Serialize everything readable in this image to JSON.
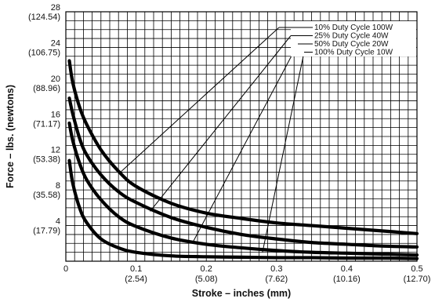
{
  "chart_data": {
    "type": "line",
    "title": "",
    "xlabel": "Stroke – inches (mm)",
    "ylabel": "Force – lbs. (newtons)",
    "xlim": [
      0,
      0.5
    ],
    "ylim": [
      0,
      28
    ],
    "grid": true,
    "legend_position": "top-right",
    "x_ticks": [
      {
        "value": 0,
        "label": "0",
        "sub": ""
      },
      {
        "value": 0.1,
        "label": "0.1",
        "sub": "(2.54)"
      },
      {
        "value": 0.2,
        "label": "0.2",
        "sub": "(5.08)"
      },
      {
        "value": 0.3,
        "label": "0.3",
        "sub": "(7.62)"
      },
      {
        "value": 0.4,
        "label": "0.4",
        "sub": "(10.16)"
      },
      {
        "value": 0.5,
        "label": "0.5",
        "sub": "(12.70)"
      }
    ],
    "y_ticks": [
      {
        "value": 4,
        "label": "4",
        "sub": "(17.79)"
      },
      {
        "value": 8,
        "label": "8",
        "sub": "(35.58)"
      },
      {
        "value": 12,
        "label": "12",
        "sub": "(53.38)"
      },
      {
        "value": 16,
        "label": "16",
        "sub": "(71.17)"
      },
      {
        "value": 20,
        "label": "20",
        "sub": "(88.96)"
      },
      {
        "value": 24,
        "label": "24",
        "sub": "(106.75)"
      },
      {
        "value": 28,
        "label": "28",
        "sub": "(124.54)"
      }
    ],
    "series": [
      {
        "name": "10% Duty Cycle 100W",
        "x": [
          0.005,
          0.01,
          0.02,
          0.03,
          0.05,
          0.075,
          0.1,
          0.15,
          0.2,
          0.25,
          0.3,
          0.35,
          0.4,
          0.45,
          0.5
        ],
        "y": [
          22.5,
          20.0,
          17.2,
          15.3,
          12.5,
          10.1,
          8.4,
          6.5,
          5.4,
          4.8,
          4.3,
          4.0,
          3.7,
          3.4,
          3.1
        ],
        "callout_point": [
          0.075,
          9.8
        ]
      },
      {
        "name": "25% Duty Cycle 40W",
        "x": [
          0.005,
          0.01,
          0.02,
          0.03,
          0.05,
          0.075,
          0.1,
          0.15,
          0.2,
          0.25,
          0.3,
          0.35,
          0.4,
          0.45,
          0.5
        ],
        "y": [
          18.3,
          16.5,
          13.7,
          11.9,
          9.7,
          7.8,
          6.6,
          4.9,
          3.8,
          3.0,
          2.5,
          2.1,
          1.9,
          1.7,
          1.6
        ],
        "callout_point": [
          0.12,
          5.6
        ]
      },
      {
        "name": "50% Duty Cycle 20W",
        "x": [
          0.005,
          0.01,
          0.02,
          0.03,
          0.05,
          0.075,
          0.1,
          0.15,
          0.2,
          0.25,
          0.3,
          0.35,
          0.4,
          0.45,
          0.5
        ],
        "y": [
          15.5,
          13.5,
          10.9,
          9.1,
          6.9,
          5.0,
          3.9,
          2.6,
          1.9,
          1.5,
          1.2,
          1.0,
          0.9,
          0.8,
          0.7
        ],
        "callout_point": [
          0.18,
          2.0
        ]
      },
      {
        "name": "100% Duty Cycle 10W",
        "x": [
          0.005,
          0.01,
          0.02,
          0.03,
          0.05,
          0.075,
          0.1,
          0.15,
          0.2,
          0.25,
          0.3,
          0.35,
          0.4,
          0.45,
          0.5
        ],
        "y": [
          11.3,
          8.7,
          5.9,
          4.3,
          2.5,
          1.5,
          1.0,
          0.6,
          0.5,
          0.45,
          0.4,
          0.4,
          0.35,
          0.35,
          0.3
        ],
        "callout_point": [
          0.28,
          1.0
        ]
      }
    ]
  }
}
